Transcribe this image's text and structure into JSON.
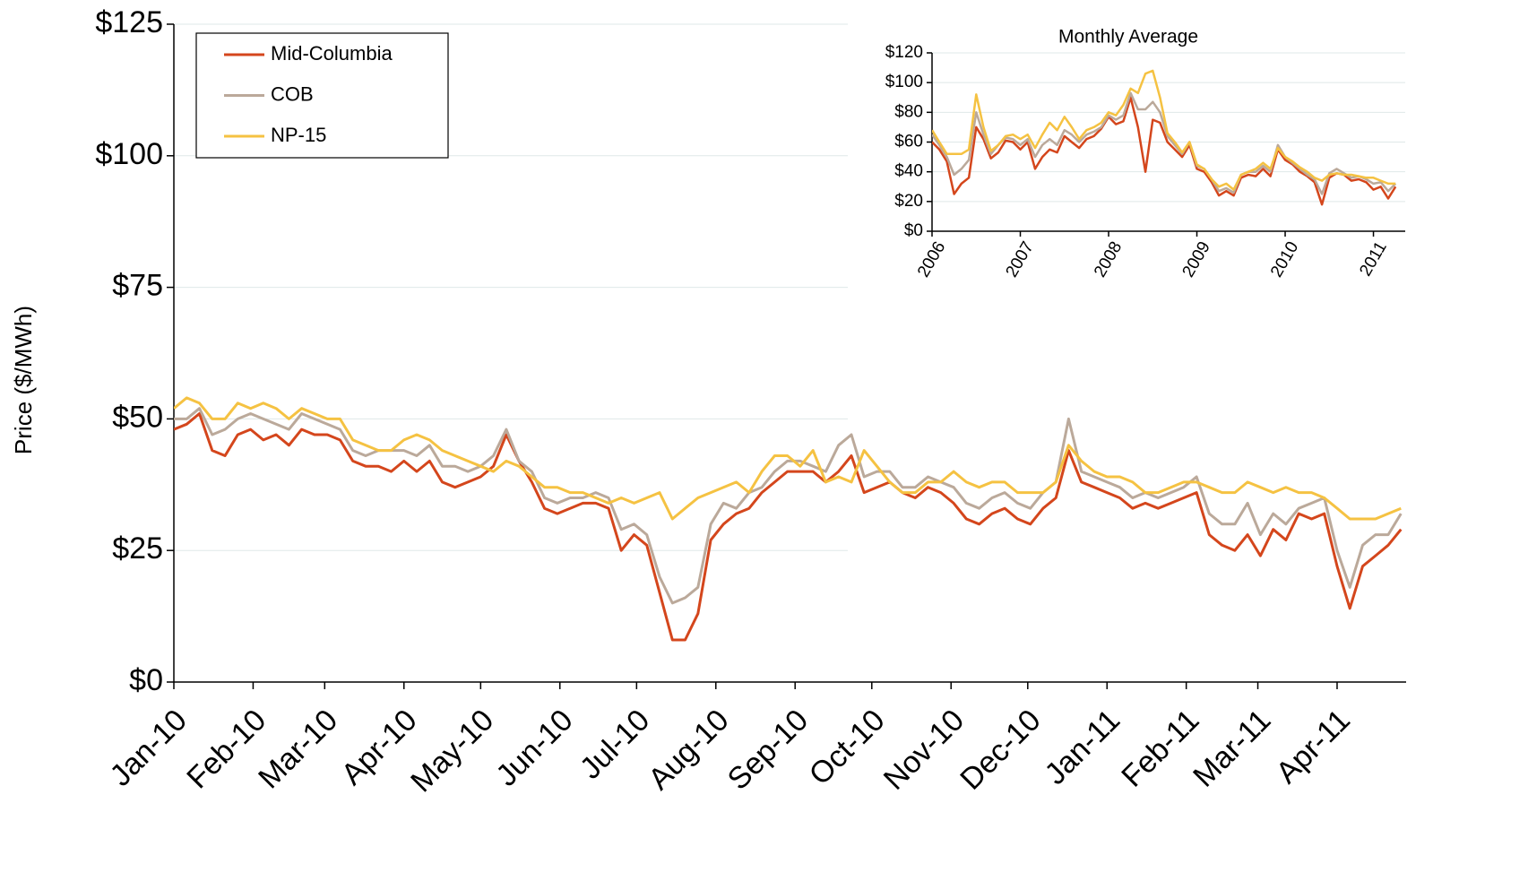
{
  "chart_data": [
    {
      "type": "line",
      "y_label": "Price ($/MWh)",
      "x": [
        0,
        5,
        10,
        15,
        20,
        25,
        30,
        35,
        40,
        45,
        50,
        55,
        60,
        65,
        70,
        75,
        80,
        85,
        90,
        95,
        100,
        105,
        110,
        115,
        120,
        125,
        130,
        135,
        140,
        145,
        150,
        155,
        160,
        165,
        170,
        175,
        180,
        185,
        190,
        195,
        200,
        205,
        210,
        215,
        220,
        225,
        230,
        235,
        240,
        245,
        250,
        255,
        260,
        265,
        270,
        275,
        280,
        285,
        290,
        295,
        300,
        305,
        310,
        315,
        320,
        325,
        330,
        335,
        340,
        345,
        350,
        355,
        360,
        365,
        370,
        375,
        380,
        385,
        390,
        395,
        400,
        405,
        410,
        415,
        420,
        425,
        430,
        435,
        440,
        445,
        450,
        455,
        460,
        465,
        470,
        475,
        480
      ],
      "xlim": [
        0,
        482
      ],
      "xticks": [
        {
          "value": 0,
          "label": "Jan-10"
        },
        {
          "value": 31,
          "label": "Feb-10"
        },
        {
          "value": 59,
          "label": "Mar-10"
        },
        {
          "value": 90,
          "label": "Apr-10"
        },
        {
          "value": 120,
          "label": "May-10"
        },
        {
          "value": 151,
          "label": "Jun-10"
        },
        {
          "value": 181,
          "label": "Jul-10"
        },
        {
          "value": 212,
          "label": "Aug-10"
        },
        {
          "value": 243,
          "label": "Sep-10"
        },
        {
          "value": 273,
          "label": "Oct-10"
        },
        {
          "value": 304,
          "label": "Nov-10"
        },
        {
          "value": 334,
          "label": "Dec-10"
        },
        {
          "value": 365,
          "label": "Jan-11"
        },
        {
          "value": 396,
          "label": "Feb-11"
        },
        {
          "value": 424,
          "label": "Mar-11"
        },
        {
          "value": 455,
          "label": "Apr-11"
        }
      ],
      "ylim": [
        0,
        125
      ],
      "yticks": [
        {
          "value": 0,
          "label": "$0"
        },
        {
          "value": 25,
          "label": "$25"
        },
        {
          "value": 50,
          "label": "$50"
        },
        {
          "value": 75,
          "label": "$75"
        },
        {
          "value": 100,
          "label": "$100"
        },
        {
          "value": 125,
          "label": "$125"
        }
      ],
      "grid": true,
      "legend": "upper-left",
      "series": [
        {
          "name": "Mid-Columbia",
          "color": "#d4461c",
          "values": [
            48,
            49,
            51,
            44,
            43,
            47,
            48,
            46,
            47,
            45,
            48,
            47,
            47,
            46,
            42,
            41,
            41,
            40,
            42,
            40,
            42,
            38,
            37,
            38,
            39,
            41,
            47,
            42,
            38,
            33,
            32,
            33,
            34,
            34,
            33,
            25,
            28,
            26,
            17,
            8,
            8,
            13,
            27,
            30,
            32,
            33,
            36,
            38,
            40,
            40,
            40,
            38,
            40,
            43,
            36,
            37,
            38,
            36,
            35,
            37,
            36,
            34,
            31,
            30,
            32,
            33,
            31,
            30,
            33,
            35,
            44,
            38,
            37,
            36,
            35,
            33,
            34,
            33,
            34,
            35,
            36,
            28,
            26,
            25,
            28,
            24,
            29,
            27,
            32,
            31,
            32,
            22,
            14,
            22,
            24,
            26,
            29
          ]
        },
        {
          "name": "COB",
          "color": "#bba99a",
          "values": [
            50,
            50,
            52,
            47,
            48,
            50,
            51,
            50,
            49,
            48,
            51,
            50,
            49,
            48,
            44,
            43,
            44,
            44,
            44,
            43,
            45,
            41,
            41,
            40,
            41,
            43,
            48,
            42,
            40,
            35,
            34,
            35,
            35,
            36,
            35,
            29,
            30,
            28,
            20,
            15,
            16,
            18,
            30,
            34,
            33,
            36,
            37,
            40,
            42,
            42,
            41,
            40,
            45,
            47,
            39,
            40,
            40,
            37,
            37,
            39,
            38,
            37,
            34,
            33,
            35,
            36,
            34,
            33,
            36,
            38,
            50,
            40,
            39,
            38,
            37,
            35,
            36,
            35,
            36,
            37,
            39,
            32,
            30,
            30,
            34,
            28,
            32,
            30,
            33,
            34,
            35,
            25,
            18,
            26,
            28,
            28,
            32
          ]
        },
        {
          "name": "NP-15",
          "color": "#f5c242",
          "values": [
            52,
            54,
            53,
            50,
            50,
            53,
            52,
            53,
            52,
            50,
            52,
            51,
            50,
            50,
            46,
            45,
            44,
            44,
            46,
            47,
            46,
            44,
            43,
            42,
            41,
            40,
            42,
            41,
            39,
            37,
            37,
            36,
            36,
            35,
            34,
            35,
            34,
            35,
            36,
            31,
            33,
            35,
            36,
            37,
            38,
            36,
            40,
            43,
            43,
            41,
            44,
            38,
            39,
            38,
            44,
            41,
            38,
            36,
            36,
            38,
            38,
            40,
            38,
            37,
            38,
            38,
            36,
            36,
            36,
            38,
            45,
            42,
            40,
            39,
            39,
            38,
            36,
            36,
            37,
            38,
            38,
            37,
            36,
            36,
            38,
            37,
            36,
            37,
            36,
            36,
            35,
            33,
            31,
            31,
            31,
            32,
            33
          ]
        }
      ]
    },
    {
      "type": "line",
      "title": "Monthly Average",
      "x": [
        2006,
        2006.083,
        2006.167,
        2006.25,
        2006.333,
        2006.417,
        2006.5,
        2006.583,
        2006.667,
        2006.75,
        2006.833,
        2006.917,
        2007,
        2007.083,
        2007.167,
        2007.25,
        2007.333,
        2007.417,
        2007.5,
        2007.583,
        2007.667,
        2007.75,
        2007.833,
        2007.917,
        2008,
        2008.083,
        2008.167,
        2008.25,
        2008.333,
        2008.417,
        2008.5,
        2008.583,
        2008.667,
        2008.75,
        2008.833,
        2008.917,
        2009,
        2009.083,
        2009.167,
        2009.25,
        2009.333,
        2009.417,
        2009.5,
        2009.583,
        2009.667,
        2009.75,
        2009.833,
        2009.917,
        2010,
        2010.083,
        2010.167,
        2010.25,
        2010.333,
        2010.417,
        2010.5,
        2010.583,
        2010.667,
        2010.75,
        2010.833,
        2010.917,
        2011,
        2011.083,
        2011.167,
        2011.25
      ],
      "xlim": [
        2006,
        2011.36
      ],
      "xticks": [
        2006,
        2007,
        2008,
        2009,
        2010,
        2011
      ],
      "ylim": [
        0,
        120
      ],
      "yticks": [
        {
          "value": 0,
          "label": "$0"
        },
        {
          "value": 20,
          "label": "$20"
        },
        {
          "value": 40,
          "label": "$40"
        },
        {
          "value": 60,
          "label": "$60"
        },
        {
          "value": 80,
          "label": "$80"
        },
        {
          "value": 100,
          "label": "$100"
        },
        {
          "value": 120,
          "label": "$120"
        }
      ],
      "grid": true,
      "series": [
        {
          "color": "#d4461c",
          "values": [
            60,
            55,
            47,
            25,
            32,
            36,
            70,
            62,
            49,
            53,
            61,
            60,
            55,
            60,
            42,
            50,
            55,
            53,
            64,
            60,
            56,
            62,
            64,
            69,
            77,
            72,
            74,
            90,
            70,
            40,
            75,
            73,
            60,
            55,
            50,
            58,
            42,
            40,
            33,
            24,
            27,
            24,
            36,
            38,
            37,
            42,
            37,
            55,
            48,
            45,
            40,
            37,
            33,
            18,
            36,
            39,
            38,
            34,
            35,
            33,
            28,
            30,
            22,
            30
          ]
        },
        {
          "color": "#bba99a",
          "values": [
            65,
            58,
            50,
            38,
            42,
            48,
            80,
            65,
            52,
            58,
            63,
            62,
            58,
            62,
            50,
            58,
            62,
            58,
            68,
            65,
            60,
            65,
            67,
            70,
            78,
            75,
            78,
            93,
            82,
            82,
            87,
            80,
            64,
            58,
            52,
            60,
            44,
            42,
            35,
            27,
            29,
            26,
            38,
            40,
            40,
            44,
            40,
            58,
            50,
            46,
            42,
            38,
            35,
            25,
            39,
            42,
            39,
            36,
            37,
            35,
            32,
            33,
            27,
            32
          ]
        },
        {
          "color": "#f5c242",
          "values": [
            68,
            60,
            52,
            52,
            52,
            55,
            92,
            70,
            54,
            58,
            64,
            65,
            62,
            65,
            56,
            65,
            73,
            68,
            77,
            70,
            62,
            68,
            70,
            73,
            80,
            78,
            85,
            96,
            93,
            106,
            108,
            90,
            66,
            60,
            53,
            60,
            45,
            42,
            35,
            30,
            32,
            28,
            38,
            40,
            42,
            46,
            42,
            56,
            50,
            47,
            43,
            40,
            36,
            34,
            38,
            39,
            38,
            38,
            37,
            36,
            36,
            34,
            32,
            32
          ]
        }
      ]
    }
  ]
}
